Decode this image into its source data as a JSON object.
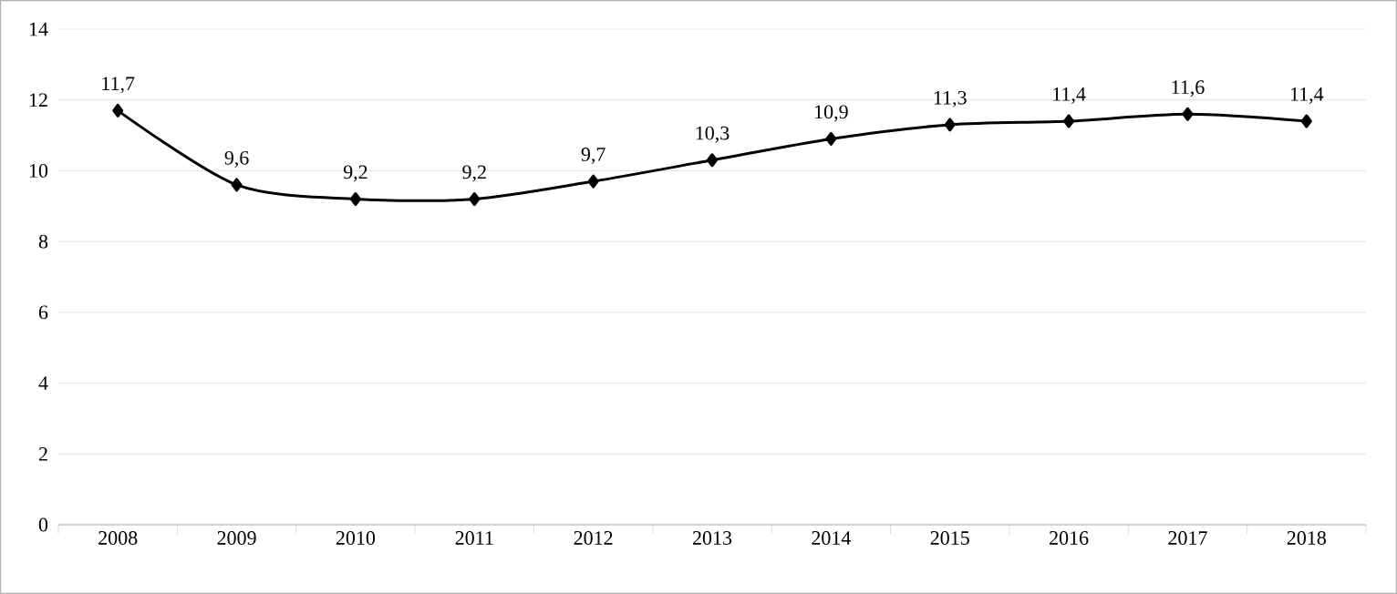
{
  "chart_data": {
    "type": "line",
    "categories": [
      "2008",
      "2009",
      "2010",
      "2011",
      "2012",
      "2013",
      "2014",
      "2015",
      "2016",
      "2017",
      "2018"
    ],
    "values": [
      11.7,
      9.6,
      9.2,
      9.2,
      9.7,
      10.3,
      10.9,
      11.3,
      11.4,
      11.6,
      11.4
    ],
    "value_labels": [
      "11,7",
      "9,6",
      "9,2",
      "9,2",
      "9,7",
      "10,3",
      "10,9",
      "11,3",
      "11,4",
      "11,6",
      "11,4"
    ],
    "color": "#000000",
    "marker": "diamond",
    "line_style": "solid",
    "grid": "y",
    "ylim": [
      0,
      14
    ],
    "yticks": [
      0,
      2,
      4,
      6,
      8,
      10,
      12,
      14
    ]
  }
}
